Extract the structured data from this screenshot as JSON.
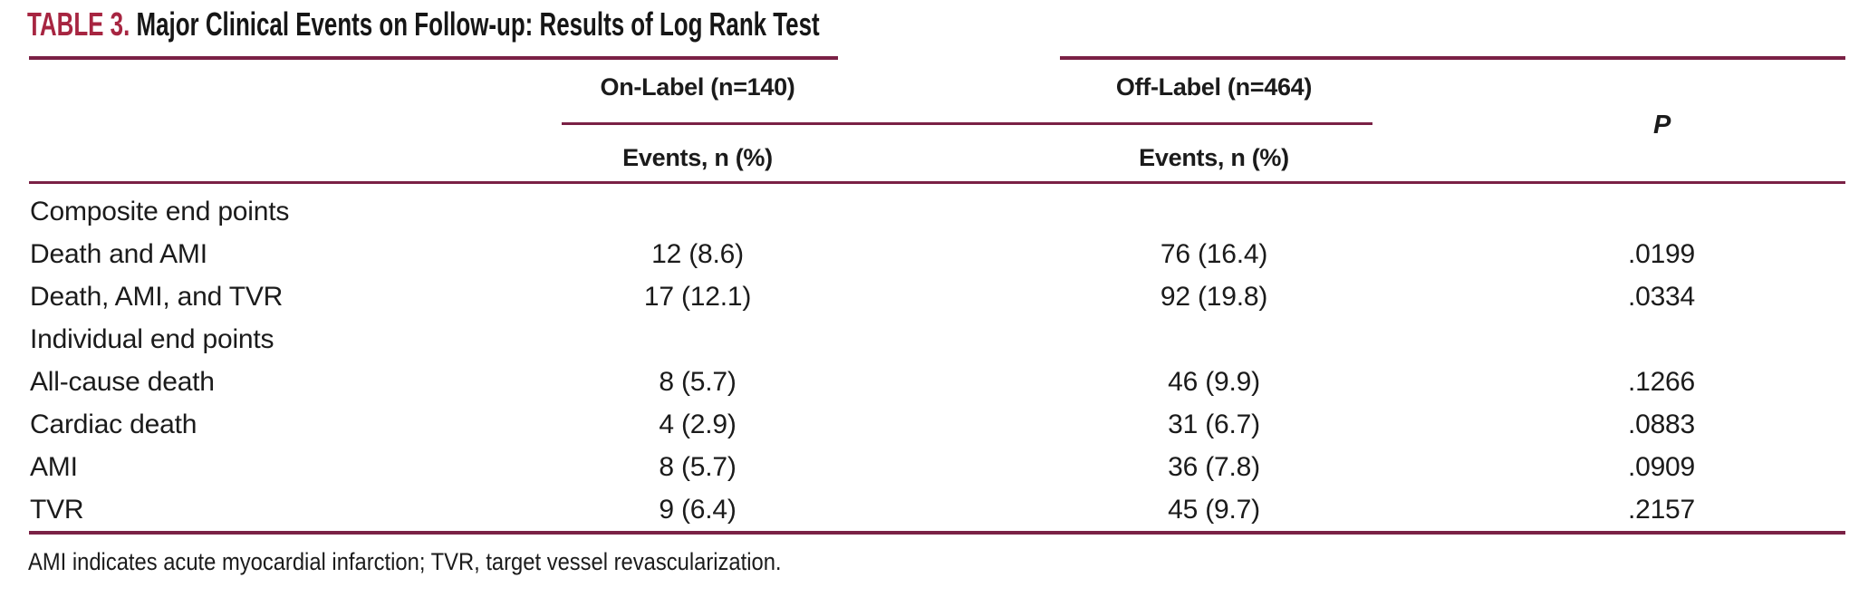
{
  "table": {
    "label": "TABLE 3.",
    "title": "Major Clinical Events on Follow-up: Results of Log Rank Test",
    "column_groups": [
      {
        "label": "On-Label (n=140)",
        "subheader": "Events, n (%)"
      },
      {
        "label": "Off-Label (n=464)",
        "subheader": "Events, n (%)"
      }
    ],
    "p_column_label": "P",
    "rows": [
      {
        "label": "Composite end points",
        "on_label": "",
        "off_label": "",
        "p": ""
      },
      {
        "label": "Death and AMI",
        "on_label": "12 (8.6)",
        "off_label": "76 (16.4)",
        "p": ".0199"
      },
      {
        "label": "Death, AMI, and TVR",
        "on_label": "17 (12.1)",
        "off_label": "92 (19.8)",
        "p": ".0334"
      },
      {
        "label": "Individual end points",
        "on_label": "",
        "off_label": "",
        "p": ""
      },
      {
        "label": "All-cause death",
        "on_label": "8 (5.7)",
        "off_label": "46 (9.9)",
        "p": ".1266"
      },
      {
        "label": "Cardiac death",
        "on_label": "4 (2.9)",
        "off_label": "31 (6.7)",
        "p": ".0883"
      },
      {
        "label": "AMI",
        "on_label": "8 (5.7)",
        "off_label": "36 (7.8)",
        "p": ".0909"
      },
      {
        "label": "TVR",
        "on_label": "9 (6.4)",
        "off_label": "45 (9.7)",
        "p": ".2157"
      }
    ],
    "footnote": "AMI indicates acute myocardial infarction; TVR, target vessel revascularization."
  },
  "colors": {
    "accent_rule": "#7a2145",
    "table_label_red": "#a72541",
    "text": "#1b1b1b"
  }
}
